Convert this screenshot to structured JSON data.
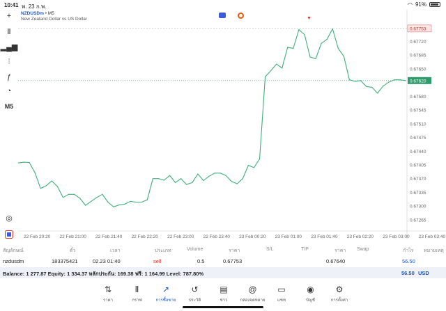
{
  "status": {
    "time": "10:41",
    "date": "พ. 23 ก.พ.",
    "battery": "91%"
  },
  "toolbar": {
    "crosshair": "+",
    "candles": "Ⅱ",
    "indicators": "▂▄▆",
    "objects": "⫶",
    "function": "ƒ",
    "shapes": "◔",
    "timeframe": "M5",
    "search": "◎"
  },
  "header": {
    "symbol": "NZDUSDm",
    "sep": "•",
    "timeframe": "M5",
    "description": "New Zealand Dollar vs US Dollar",
    "sell_marker": "▼"
  },
  "price_axis": {
    "labels": [
      "0.67753",
      "0.67720",
      "0.67685",
      "0.67650",
      "0.67620",
      "0.67580",
      "0.67545",
      "0.67510",
      "0.67475",
      "0.67440",
      "0.67405",
      "0.67370",
      "0.67335",
      "0.67300",
      "0.67265"
    ],
    "current_price": "0.67620",
    "order_price": "0.67753"
  },
  "time_axis": [
    "22 Feb 20:20",
    "22 Feb 21:00",
    "22 Feb 21:40",
    "22 Feb 22:20",
    "22 Feb 23:00",
    "22 Feb 23:40",
    "23 Feb 00:20",
    "23 Feb 01:00",
    "23 Feb 01:40",
    "23 Feb 02:20",
    "23 Feb 03:00",
    "23 Feb 03:40"
  ],
  "chart_data": {
    "type": "line",
    "title": "",
    "xlabel": "",
    "ylabel": "",
    "ylim": [
      0.6724,
      0.6779
    ],
    "values": [
      0.6741,
      0.67412,
      0.67411,
      0.67385,
      0.67345,
      0.67352,
      0.67364,
      0.6735,
      0.67322,
      0.6733,
      0.6733,
      0.6732,
      0.67302,
      0.67312,
      0.67322,
      0.6733,
      0.6731,
      0.67298,
      0.67303,
      0.67305,
      0.67312,
      0.6731,
      0.6731,
      0.67316,
      0.6737,
      0.6737,
      0.67366,
      0.67378,
      0.6736,
      0.6737,
      0.67355,
      0.6736,
      0.67382,
      0.67365,
      0.67376,
      0.67384,
      0.67384,
      0.67378,
      0.67363,
      0.67357,
      0.6737,
      0.67404,
      0.67398,
      0.6742,
      0.6763,
      0.67645,
      0.67662,
      0.67652,
      0.67705,
      0.67702,
      0.6775,
      0.67737,
      0.6768,
      0.67676,
      0.67715,
      0.67725,
      0.67752,
      0.67702,
      0.67682,
      0.67622,
      0.67618,
      0.6762,
      0.67605,
      0.67603,
      0.67588,
      0.67606,
      0.67616,
      0.67622,
      0.67622,
      0.6762
    ]
  },
  "positions": {
    "headers": [
      "สัญลักษณ์",
      "ตั๋ว",
      "เวลา",
      "ประเภท",
      "Volume",
      "ราคา",
      "S/L",
      "T/P",
      "ราคา",
      "Swap",
      "กำไร",
      "หมายเหตุ"
    ],
    "row": {
      "symbol": "nzdusdm",
      "ticket": "183375421",
      "time": "02.23 01:40",
      "type": "sell",
      "volume": "0.5",
      "open_price": "0.67753",
      "sl": "",
      "tp": "",
      "price": "0.67640",
      "swap": "",
      "profit": "56.50",
      "comment": ""
    }
  },
  "balance": {
    "text": "Balance: 1 277.87 Equity: 1 334.37 หลักประกัน: 169.38 ฟรี: 1 164.99 Level: 787.80%",
    "profit": "56.50",
    "currency": "USD"
  },
  "nav": [
    {
      "icon": "quotes-icon",
      "label": "ราคา",
      "glyph": "⇅"
    },
    {
      "icon": "chart-icon",
      "label": "กราฟ",
      "glyph": "Ⅱ"
    },
    {
      "icon": "trade-icon",
      "label": "การซื้อขาย",
      "glyph": "↗"
    },
    {
      "icon": "history-icon",
      "label": "ประวัติ",
      "glyph": "↺"
    },
    {
      "icon": "news-icon",
      "label": "ข่าว",
      "glyph": "▤"
    },
    {
      "icon": "mailbox-icon",
      "label": "กล่องจดหมาย",
      "glyph": "@"
    },
    {
      "icon": "chat-icon",
      "label": "แชท",
      "glyph": "▭"
    },
    {
      "icon": "account-icon",
      "label": "บัญชี",
      "glyph": "◉"
    },
    {
      "icon": "settings-icon",
      "label": "การตั้งค่า",
      "glyph": "⚙"
    }
  ],
  "colors": {
    "line": "#3fae7a",
    "current": "#2e9c6a",
    "order": "#e57373",
    "accent": "#1a56c4"
  }
}
